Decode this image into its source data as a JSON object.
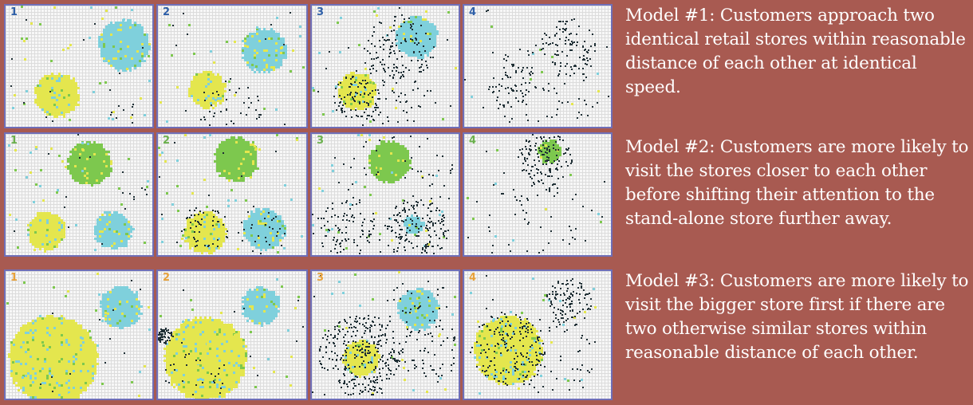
{
  "colors": {
    "background": "#a85a51",
    "store_yellow": "#e4e64e",
    "store_cyan": "#7fd0dc",
    "store_green": "#7dc84e",
    "customer_dark": "#1f2f35",
    "label_blue": "#2e5fa8",
    "label_green": "#6ab04c",
    "label_orange": "#e8a23a"
  },
  "models": [
    {
      "caption": "Model #1: Customers approach two identical retail stores within reasonable distance of each other at identical speed.",
      "panels": [
        {
          "label": "1"
        },
        {
          "label": "2"
        },
        {
          "label": "3"
        },
        {
          "label": "4"
        }
      ]
    },
    {
      "caption": "Model #2: Customers are more likely to visit the stores closer to each other before shifting their attention to the stand-alone store further away.",
      "panels": [
        {
          "label": "1"
        },
        {
          "label": "2"
        },
        {
          "label": "3"
        },
        {
          "label": "4"
        }
      ]
    },
    {
      "caption": "Model #3: Customers are more likely to visit the bigger store first if there are two otherwise similar stores within reasonable distance of each other.",
      "panels": [
        {
          "label": "1"
        },
        {
          "label": "2"
        },
        {
          "label": "3"
        },
        {
          "label": "4"
        }
      ]
    }
  ]
}
